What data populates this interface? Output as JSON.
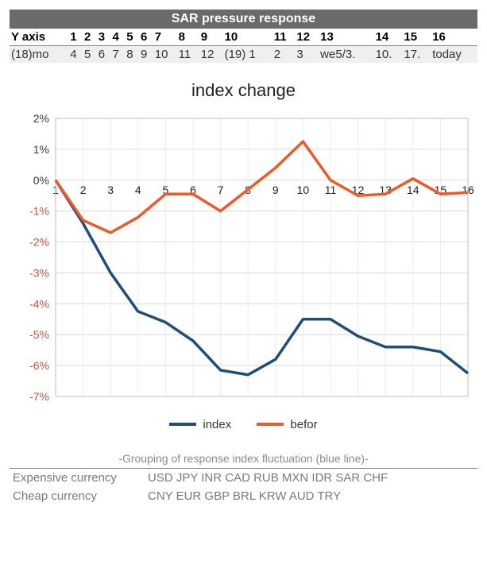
{
  "header_table": {
    "title": "SAR pressure response",
    "row1": [
      "Y axis",
      "1",
      "2",
      "3",
      "4",
      "5",
      "6",
      "7",
      "8",
      "9",
      "10",
      "11",
      "12",
      "13",
      "14",
      "15",
      "16"
    ],
    "row2": [
      "(18)mo",
      "4",
      "5",
      "6",
      "7",
      "8",
      "9",
      "10",
      "11",
      "12",
      "(19) 1",
      "2",
      "3",
      "we5/3.",
      "10.",
      "17.",
      "today"
    ]
  },
  "chart": {
    "title": "index change",
    "type": "line",
    "x_values": [
      1,
      2,
      3,
      4,
      5,
      6,
      7,
      8,
      9,
      10,
      11,
      12,
      13,
      14,
      15,
      16
    ],
    "series": {
      "index": {
        "label": "index",
        "color": "#1f4e79",
        "y": [
          0,
          -1.4,
          -3.0,
          -4.25,
          -4.6,
          -5.2,
          -6.15,
          -6.3,
          -5.8,
          -4.5,
          -4.5,
          -5.05,
          -5.4,
          -5.4,
          -5.55,
          -6.25
        ]
      },
      "befor": {
        "label": "befor",
        "color": "#ed5a28",
        "y": [
          0,
          -1.3,
          -1.7,
          -1.2,
          -0.45,
          -0.45,
          -1.0,
          -0.3,
          0.4,
          1.25,
          0.0,
          -0.5,
          -0.45,
          0.05,
          -0.45,
          -0.4
        ]
      }
    },
    "ylim": [
      -7,
      2
    ],
    "ytick_step": 1,
    "grid_color": "#d9d9d9",
    "minor_grid_color": "#ececec",
    "border_color": "#bfbfbf",
    "background_color": "#ffffff",
    "ylabel_fontsize": 14,
    "xlabel_fontsize": 14,
    "line_width": 3.5,
    "neg_label_color": "#c0504d",
    "pos_label_color": "#3a3a3a"
  },
  "footer": {
    "caption": "-Grouping of response index fluctuation (blue line)-",
    "rows": [
      {
        "label": "Expensive currency",
        "value": "USD JPY INR CAD RUB MXN IDR SAR CHF"
      },
      {
        "label": "Cheap currency",
        "value": "CNY EUR GBP BRL KRW AUD TRY"
      }
    ]
  }
}
